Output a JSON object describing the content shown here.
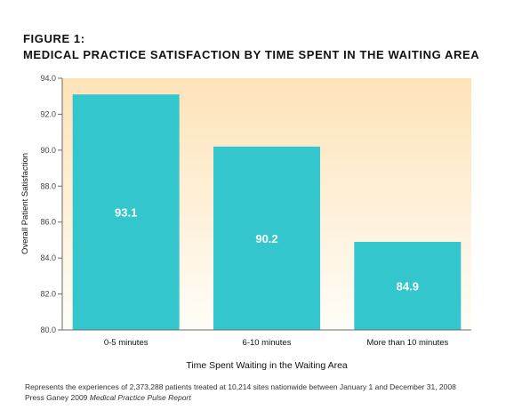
{
  "figure": {
    "label": "FIGURE 1:",
    "title": "MEDICAL PRACTICE SATISFACTION BY TIME SPENT IN THE WAITING AREA",
    "footnote": "Represents the experiences of 2,373,288 patients treated at 10,214 sites nationwide between January 1 and December 31, 2008",
    "source_prefix": "Press Ganey 2009 ",
    "source_title": "Medical Practice Pulse Report"
  },
  "chart_data": {
    "type": "bar",
    "categories": [
      "0-5 minutes",
      "6-10 minutes",
      "More than 10 minutes"
    ],
    "values": [
      93.1,
      90.2,
      84.9
    ],
    "data_labels": [
      "93.1",
      "90.2",
      "84.9"
    ],
    "title": "",
    "xlabel": "Time Spent Waiting in the Waiting Area",
    "ylabel": "Overall Patient Satisfaction",
    "ylim": [
      80.0,
      94.0
    ],
    "yticks": [
      "80.0",
      "82.0",
      "84.0",
      "86.0",
      "88.0",
      "90.0",
      "92.0",
      "94.0"
    ],
    "grid": false,
    "legend": "none",
    "colors": {
      "bar": "#33c6cc",
      "plot_top": "#fde3b8",
      "plot_bottom": "#fffdf8",
      "axis": "#6b6b6b",
      "data_label": "#ffffff"
    }
  }
}
